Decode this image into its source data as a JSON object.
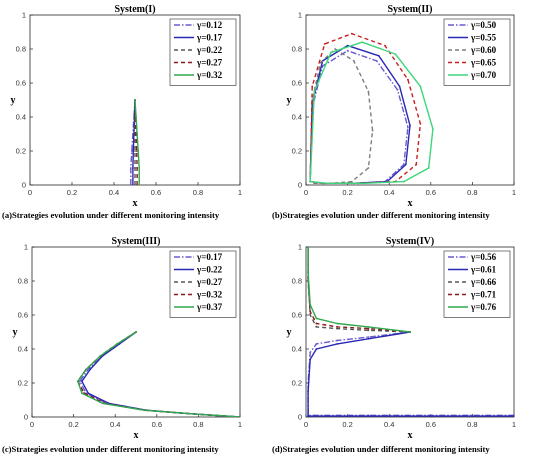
{
  "chart_data": [
    {
      "type": "line",
      "title": "System(I)",
      "xlabel": "x",
      "ylabel": "y",
      "xlim": [
        0,
        1
      ],
      "ylim": [
        0,
        1
      ],
      "xticks": [
        "0",
        "0.2",
        "0.4",
        "0.6",
        "0.8",
        "1"
      ],
      "yticks": [
        "0",
        "0.2",
        "0.4",
        "0.6",
        "0.8",
        "1"
      ],
      "legend_position": "top-right",
      "caption": "(a)Strategies evolution under different monitoring intensity",
      "series": [
        {
          "name": "γ=0.12",
          "color": "#6a5acd",
          "dash": "6,2,1.5,2",
          "x": [
            0.48,
            0.48,
            0.485,
            0.49,
            0.495,
            0.5
          ],
          "y": [
            0,
            0.1,
            0.2,
            0.3,
            0.4,
            0.5
          ]
        },
        {
          "name": "γ=0.17",
          "color": "#2828b4",
          "dash": "",
          "x": [
            0.49,
            0.49,
            0.492,
            0.495,
            0.498,
            0.5
          ],
          "y": [
            0,
            0.1,
            0.2,
            0.3,
            0.4,
            0.5
          ]
        },
        {
          "name": "γ=0.22",
          "color": "#555555",
          "dash": "4,3",
          "x": [
            0.5,
            0.5,
            0.5,
            0.5,
            0.5,
            0.5
          ],
          "y": [
            0,
            0.1,
            0.2,
            0.3,
            0.4,
            0.5
          ]
        },
        {
          "name": "γ=0.27",
          "color": "#8b1a1a",
          "dash": "4,3",
          "x": [
            0.51,
            0.51,
            0.508,
            0.505,
            0.502,
            0.5
          ],
          "y": [
            0,
            0.1,
            0.2,
            0.3,
            0.4,
            0.5
          ]
        },
        {
          "name": "γ=0.32",
          "color": "#2fa84f",
          "dash": "",
          "x": [
            0.52,
            0.52,
            0.515,
            0.51,
            0.505,
            0.5
          ],
          "y": [
            0,
            0.1,
            0.2,
            0.3,
            0.4,
            0.5
          ]
        }
      ]
    },
    {
      "type": "line",
      "title": "System(II)",
      "xlabel": "x",
      "ylabel": "y",
      "xlim": [
        0,
        1
      ],
      "ylim": [
        0,
        1
      ],
      "xticks": [
        "0",
        "0.2",
        "0.4",
        "0.6",
        "0.8",
        "1"
      ],
      "yticks": [
        "0",
        "0.2",
        "0.4",
        "0.6",
        "0.8",
        "1"
      ],
      "legend_position": "top-right",
      "caption": "(b)Strategies evolution under different monitoring intensity",
      "series": [
        {
          "name": "γ=0.50",
          "color": "#6a5acd",
          "dash": "6,2,1.5,2",
          "x": [
            0.02,
            0.03,
            0.08,
            0.2,
            0.34,
            0.44,
            0.49,
            0.47,
            0.38,
            0.22,
            0.08,
            0.02
          ],
          "y": [
            0.02,
            0.45,
            0.7,
            0.79,
            0.73,
            0.56,
            0.34,
            0.12,
            0.02,
            0.01,
            0.01,
            0.02
          ]
        },
        {
          "name": "γ=0.55",
          "color": "#2828b4",
          "dash": "",
          "x": [
            0.02,
            0.03,
            0.08,
            0.2,
            0.35,
            0.45,
            0.5,
            0.48,
            0.39,
            0.23,
            0.08,
            0.02
          ],
          "y": [
            0.02,
            0.48,
            0.73,
            0.82,
            0.76,
            0.58,
            0.35,
            0.12,
            0.02,
            0.01,
            0.01,
            0.02
          ]
        },
        {
          "name": "γ=0.60",
          "color": "#7d7d7d",
          "dash": "4,3",
          "x": [
            0.02,
            0.03,
            0.07,
            0.14,
            0.23,
            0.3,
            0.32,
            0.3,
            0.22,
            0.12,
            0.04,
            0.02
          ],
          "y": [
            0.02,
            0.5,
            0.72,
            0.8,
            0.73,
            0.55,
            0.32,
            0.1,
            0.02,
            0.01,
            0.01,
            0.02
          ]
        },
        {
          "name": "γ=0.65",
          "color": "#c81e1e",
          "dash": "4,3",
          "x": [
            0.02,
            0.03,
            0.09,
            0.22,
            0.38,
            0.49,
            0.55,
            0.53,
            0.43,
            0.25,
            0.09,
            0.02
          ],
          "y": [
            0.02,
            0.58,
            0.83,
            0.89,
            0.82,
            0.62,
            0.36,
            0.12,
            0.02,
            0.01,
            0.01,
            0.02
          ]
        },
        {
          "name": "γ=0.70",
          "color": "#3ed67a",
          "dash": "",
          "x": [
            0.02,
            0.04,
            0.12,
            0.27,
            0.43,
            0.55,
            0.61,
            0.59,
            0.47,
            0.28,
            0.1,
            0.02
          ],
          "y": [
            0.02,
            0.55,
            0.78,
            0.84,
            0.77,
            0.58,
            0.33,
            0.1,
            0.02,
            0.01,
            0.01,
            0.02
          ]
        }
      ]
    },
    {
      "type": "line",
      "title": "System(III)",
      "xlabel": "x",
      "ylabel": "y",
      "xlim": [
        0,
        1
      ],
      "ylim": [
        0,
        1
      ],
      "xticks": [
        "0",
        "0.2",
        "0.4",
        "0.6",
        "0.8",
        "1"
      ],
      "yticks": [
        "0",
        "0.2",
        "0.4",
        "0.6",
        "0.8",
        "1"
      ],
      "legend_position": "top-right",
      "caption": "(c)Strategies evolution under different monitoring intensity",
      "series": [
        {
          "name": "γ=0.17",
          "color": "#6a5acd",
          "dash": "6,2,1.5,2",
          "x": [
            0.5,
            0.42,
            0.34,
            0.27,
            0.23,
            0.26,
            0.36,
            0.55,
            0.75,
            1
          ],
          "y": [
            0.5,
            0.43,
            0.36,
            0.28,
            0.21,
            0.14,
            0.08,
            0.04,
            0.02,
            0
          ]
        },
        {
          "name": "γ=0.22",
          "color": "#2828b4",
          "dash": "",
          "x": [
            0.5,
            0.42,
            0.34,
            0.28,
            0.24,
            0.27,
            0.37,
            0.55,
            0.75,
            1
          ],
          "y": [
            0.5,
            0.43,
            0.36,
            0.28,
            0.21,
            0.14,
            0.08,
            0.04,
            0.02,
            0
          ]
        },
        {
          "name": "γ=0.27",
          "color": "#555555",
          "dash": "4,3",
          "x": [
            0.5,
            0.41,
            0.33,
            0.26,
            0.22,
            0.25,
            0.35,
            0.54,
            0.75,
            1
          ],
          "y": [
            0.5,
            0.43,
            0.36,
            0.28,
            0.21,
            0.14,
            0.08,
            0.04,
            0.02,
            0
          ]
        },
        {
          "name": "γ=0.32",
          "color": "#8b1a1a",
          "dash": "4,3",
          "x": [
            0.5,
            0.41,
            0.33,
            0.26,
            0.22,
            0.25,
            0.35,
            0.54,
            0.75,
            1
          ],
          "y": [
            0.5,
            0.43,
            0.36,
            0.28,
            0.21,
            0.14,
            0.08,
            0.04,
            0.02,
            0
          ]
        },
        {
          "name": "γ=0.37",
          "color": "#2fa84f",
          "dash": "",
          "x": [
            0.5,
            0.41,
            0.33,
            0.26,
            0.22,
            0.24,
            0.34,
            0.54,
            0.75,
            1
          ],
          "y": [
            0.5,
            0.43,
            0.36,
            0.28,
            0.21,
            0.14,
            0.08,
            0.04,
            0.02,
            0
          ]
        }
      ]
    },
    {
      "type": "line",
      "title": "System(IV)",
      "xlabel": "x",
      "ylabel": "y",
      "xlim": [
        0,
        1
      ],
      "ylim": [
        0,
        1
      ],
      "xticks": [
        "0",
        "0.2",
        "0.4",
        "0.6",
        "0.8",
        "1"
      ],
      "yticks": [
        "0",
        "0.2",
        "0.4",
        "0.6",
        "0.8",
        "1"
      ],
      "legend_position": "top-right",
      "caption": "(d)Strategies evolution under different monitoring intensity",
      "series": [
        {
          "name": "γ=0.56",
          "color": "#6a5acd",
          "dash": "6,2,1.5,2",
          "x": [
            0.5,
            0.3,
            0.15,
            0.05,
            0.02,
            0.01,
            0.01,
            0.3,
            1
          ],
          "y": [
            0.5,
            0.47,
            0.45,
            0.43,
            0.38,
            0.2,
            0.01,
            0.01,
            0.01
          ]
        },
        {
          "name": "γ=0.61",
          "color": "#2828b4",
          "dash": "",
          "x": [
            0.5,
            0.3,
            0.15,
            0.05,
            0.02,
            0.01,
            0.01,
            0.3,
            1
          ],
          "y": [
            0.5,
            0.46,
            0.43,
            0.4,
            0.34,
            0.15,
            0.005,
            0.005,
            0.005
          ]
        },
        {
          "name": "γ=0.66",
          "color": "#555555",
          "dash": "4,3",
          "x": [
            0.5,
            0.3,
            0.15,
            0.05,
            0.02,
            0.01,
            0.01
          ],
          "y": [
            0.5,
            0.51,
            0.52,
            0.53,
            0.6,
            0.8,
            1
          ]
        },
        {
          "name": "γ=0.71",
          "color": "#8b1a1a",
          "dash": "4,3",
          "x": [
            0.5,
            0.3,
            0.15,
            0.05,
            0.02,
            0.01,
            0.01
          ],
          "y": [
            0.5,
            0.52,
            0.53,
            0.55,
            0.62,
            0.82,
            1
          ]
        },
        {
          "name": "γ=0.76",
          "color": "#2fa84f",
          "dash": "",
          "x": [
            0.5,
            0.3,
            0.15,
            0.05,
            0.02,
            0.01,
            0.01
          ],
          "y": [
            0.5,
            0.53,
            0.55,
            0.58,
            0.66,
            0.85,
            1
          ]
        }
      ]
    }
  ]
}
